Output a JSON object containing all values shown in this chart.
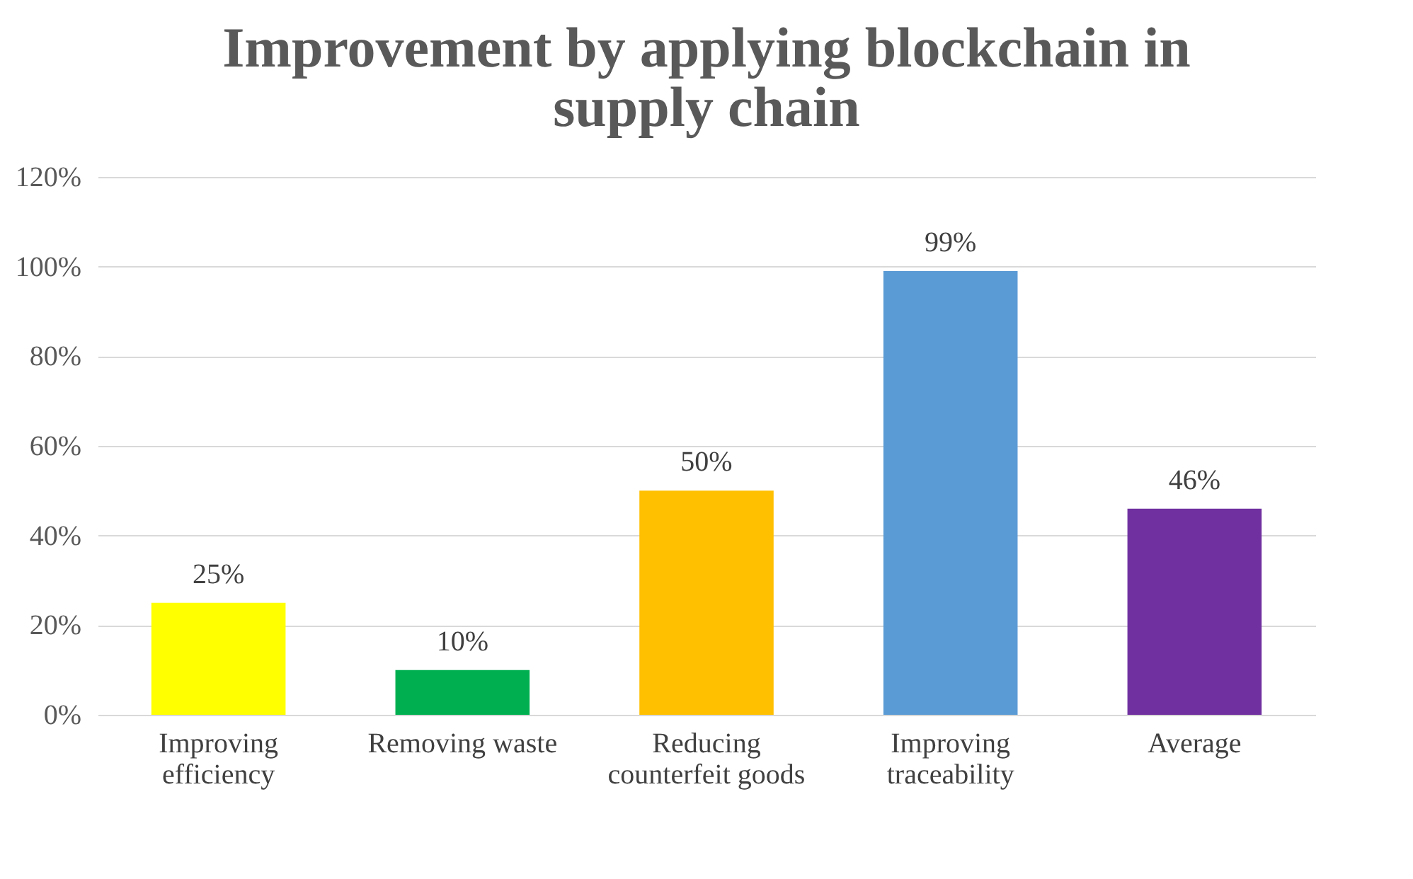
{
  "chart_data": {
    "type": "bar",
    "title": "Improvement by applying blockchain in supply chain",
    "categories": [
      "Improving efficiency",
      "Removing waste",
      "Reducing counterfeit goods",
      "Improving traceability",
      "Average"
    ],
    "values": [
      25,
      10,
      50,
      99,
      46
    ],
    "colors": [
      "#ffff00",
      "#00b050",
      "#ffc000",
      "#5b9bd5",
      "#7030a0"
    ],
    "value_labels": [
      "25%",
      "10%",
      "50%",
      "99%",
      "46%"
    ],
    "ylim": [
      0,
      120
    ],
    "yticks": [
      {
        "value": 0,
        "label": "0%"
      },
      {
        "value": 20,
        "label": "20%"
      },
      {
        "value": 40,
        "label": "40%"
      },
      {
        "value": 60,
        "label": "60%"
      },
      {
        "value": 80,
        "label": "80%"
      },
      {
        "value": 100,
        "label": "100%"
      },
      {
        "value": 120,
        "label": "120%"
      }
    ],
    "grid": "y"
  }
}
